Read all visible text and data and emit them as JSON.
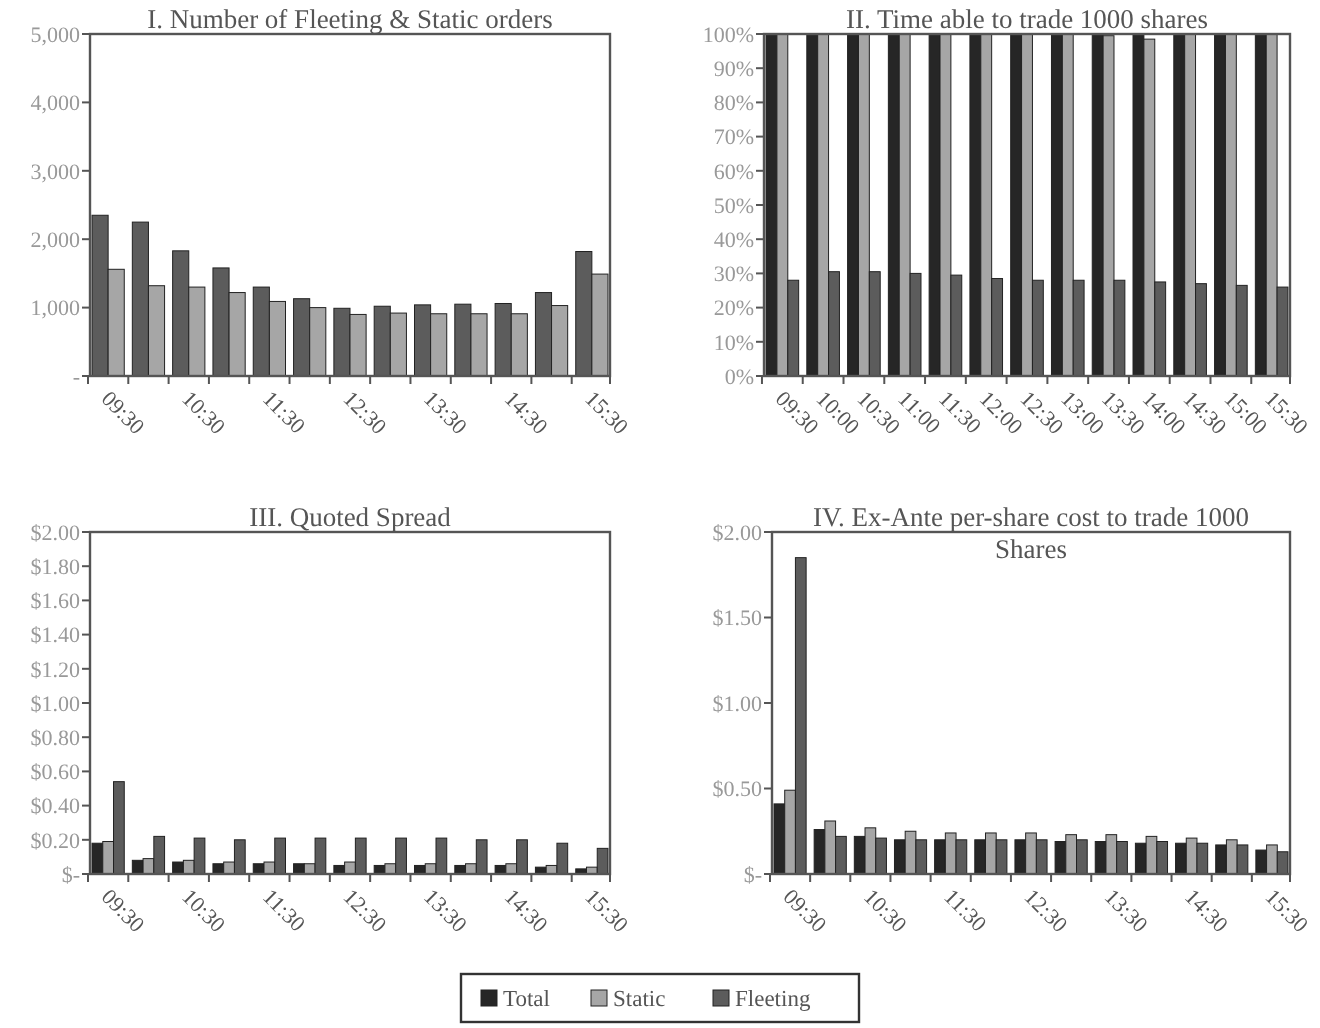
{
  "chart_data": [
    {
      "type": "bar",
      "title": "I. Number of Fleeting & Static orders",
      "categories": [
        "09:30",
        null,
        "10:30",
        null,
        "11:30",
        null,
        "12:30",
        null,
        "13:30",
        null,
        "14:30",
        null,
        "15:30"
      ],
      "series": [
        {
          "name": "Fleeting",
          "color": "#5c5c5c",
          "values": [
            2350,
            2250,
            1830,
            1580,
            1300,
            1130,
            990,
            1020,
            1040,
            1050,
            1060,
            1220,
            1820
          ]
        },
        {
          "name": "Static",
          "color": "#a6a6a6",
          "values": [
            1560,
            1320,
            1300,
            1220,
            1090,
            1000,
            900,
            920,
            910,
            910,
            910,
            1030,
            1490
          ]
        }
      ],
      "ylim": [
        0,
        5000
      ],
      "yticks": [
        {
          "value": 0,
          "label": "-"
        },
        {
          "value": 1000,
          "label": "1,000"
        },
        {
          "value": 2000,
          "label": "2,000"
        },
        {
          "value": 3000,
          "label": "3,000"
        },
        {
          "value": 4000,
          "label": "4,000"
        },
        {
          "value": 5000,
          "label": "5,000"
        }
      ],
      "grid": false,
      "legend": "bottom"
    },
    {
      "type": "bar",
      "title": "II. Time able to trade 1000 shares",
      "categories": [
        "09:30",
        "10:00",
        "10:30",
        "11:00",
        "11:30",
        "12:00",
        "12:30",
        "13:00",
        "13:30",
        "14:00",
        "14:30",
        "15:00",
        "15:30"
      ],
      "series": [
        {
          "name": "Total",
          "color": "#262626",
          "values": [
            100,
            100,
            100,
            100,
            100,
            100,
            100,
            100,
            100,
            100,
            100,
            100,
            100
          ]
        },
        {
          "name": "Static",
          "color": "#a6a6a6",
          "values": [
            100,
            100,
            100,
            100,
            100,
            100,
            100,
            100,
            99.5,
            98.5,
            100,
            100,
            100
          ]
        },
        {
          "name": "Fleeting",
          "color": "#5c5c5c",
          "values": [
            28,
            30.5,
            30.5,
            30,
            29.5,
            28.5,
            28,
            28,
            28,
            27.5,
            27,
            26.5,
            26
          ]
        }
      ],
      "ylim": [
        0,
        100
      ],
      "yticks": [
        {
          "value": 0,
          "label": "0%"
        },
        {
          "value": 10,
          "label": "10%"
        },
        {
          "value": 20,
          "label": "20%"
        },
        {
          "value": 30,
          "label": "30%"
        },
        {
          "value": 40,
          "label": "40%"
        },
        {
          "value": 50,
          "label": "50%"
        },
        {
          "value": 60,
          "label": "60%"
        },
        {
          "value": 70,
          "label": "70%"
        },
        {
          "value": 80,
          "label": "80%"
        },
        {
          "value": 90,
          "label": "90%"
        },
        {
          "value": 100,
          "label": "100%"
        }
      ],
      "grid": false,
      "legend": "bottom"
    },
    {
      "type": "bar",
      "title": "III. Quoted Spread",
      "categories": [
        "09:30",
        null,
        "10:30",
        null,
        "11:30",
        null,
        "12:30",
        null,
        "13:30",
        null,
        "14:30",
        null,
        "15:30"
      ],
      "series": [
        {
          "name": "Total",
          "color": "#262626",
          "values": [
            0.18,
            0.08,
            0.07,
            0.06,
            0.06,
            0.06,
            0.05,
            0.05,
            0.05,
            0.05,
            0.05,
            0.04,
            0.03
          ]
        },
        {
          "name": "Static",
          "color": "#a6a6a6",
          "values": [
            0.19,
            0.09,
            0.08,
            0.07,
            0.07,
            0.06,
            0.07,
            0.06,
            0.06,
            0.06,
            0.06,
            0.05,
            0.04
          ]
        },
        {
          "name": "Fleeting",
          "color": "#5c5c5c",
          "values": [
            0.54,
            0.22,
            0.21,
            0.2,
            0.21,
            0.21,
            0.21,
            0.21,
            0.21,
            0.2,
            0.2,
            0.18,
            0.15
          ]
        }
      ],
      "ylim": [
        0,
        2
      ],
      "yticks": [
        {
          "value": 0,
          "label": "$-"
        },
        {
          "value": 0.2,
          "label": "$0.20"
        },
        {
          "value": 0.4,
          "label": "$0.40"
        },
        {
          "value": 0.6,
          "label": "$0.60"
        },
        {
          "value": 0.8,
          "label": "$0.80"
        },
        {
          "value": 1,
          "label": "$1.00"
        },
        {
          "value": 1.2,
          "label": "$1.20"
        },
        {
          "value": 1.4,
          "label": "$1.40"
        },
        {
          "value": 1.6,
          "label": "$1.60"
        },
        {
          "value": 1.8,
          "label": "$1.80"
        },
        {
          "value": 2,
          "label": "$2.00"
        }
      ],
      "grid": false,
      "legend": "bottom"
    },
    {
      "type": "bar",
      "title": "IV. Ex-Ante per-share cost to trade 1000 Shares",
      "categories": [
        "09:30",
        null,
        "10:30",
        null,
        "11:30",
        null,
        "12:30",
        null,
        "13:30",
        null,
        "14:30",
        null,
        "15:30"
      ],
      "series": [
        {
          "name": "Total",
          "color": "#262626",
          "values": [
            0.41,
            0.26,
            0.22,
            0.2,
            0.2,
            0.2,
            0.2,
            0.19,
            0.19,
            0.18,
            0.18,
            0.17,
            0.14
          ]
        },
        {
          "name": "Static",
          "color": "#a6a6a6",
          "values": [
            0.49,
            0.31,
            0.27,
            0.25,
            0.24,
            0.24,
            0.24,
            0.23,
            0.23,
            0.22,
            0.21,
            0.2,
            0.17
          ]
        },
        {
          "name": "Fleeting",
          "color": "#5c5c5c",
          "values": [
            1.85,
            0.22,
            0.21,
            0.2,
            0.2,
            0.2,
            0.2,
            0.2,
            0.19,
            0.19,
            0.18,
            0.17,
            0.13
          ]
        }
      ],
      "ylim": [
        0,
        2
      ],
      "yticks": [
        {
          "value": 0,
          "label": "$-"
        },
        {
          "value": 0.5,
          "label": "$0.50"
        },
        {
          "value": 1,
          "label": "$1.00"
        },
        {
          "value": 1.5,
          "label": "$1.50"
        },
        {
          "value": 2,
          "label": "$2.00"
        }
      ],
      "grid": false,
      "legend": "bottom"
    }
  ]
}
